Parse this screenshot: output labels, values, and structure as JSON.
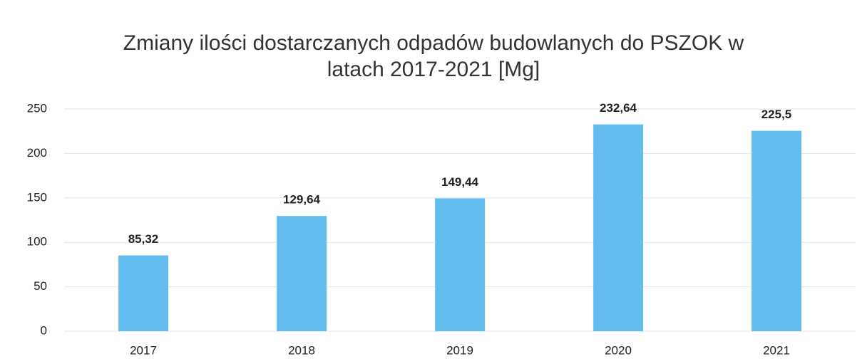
{
  "chart_data": {
    "type": "bar",
    "title": "Zmiany ilości dostarczanych odpadów budowlanych do PSZOK w latach 2017-2021 [Mg]",
    "categories": [
      "2017",
      "2018",
      "2019",
      "2020",
      "2021"
    ],
    "values": [
      85.32,
      129.64,
      149.44,
      232.64,
      225.5
    ],
    "value_labels": [
      "85,32",
      "129,64",
      "149,44",
      "232,64",
      "225,5"
    ],
    "color": "#62bdee",
    "ylim": [
      0,
      250
    ],
    "yticks": [
      0,
      50,
      100,
      150,
      200,
      250
    ],
    "grid": true
  }
}
